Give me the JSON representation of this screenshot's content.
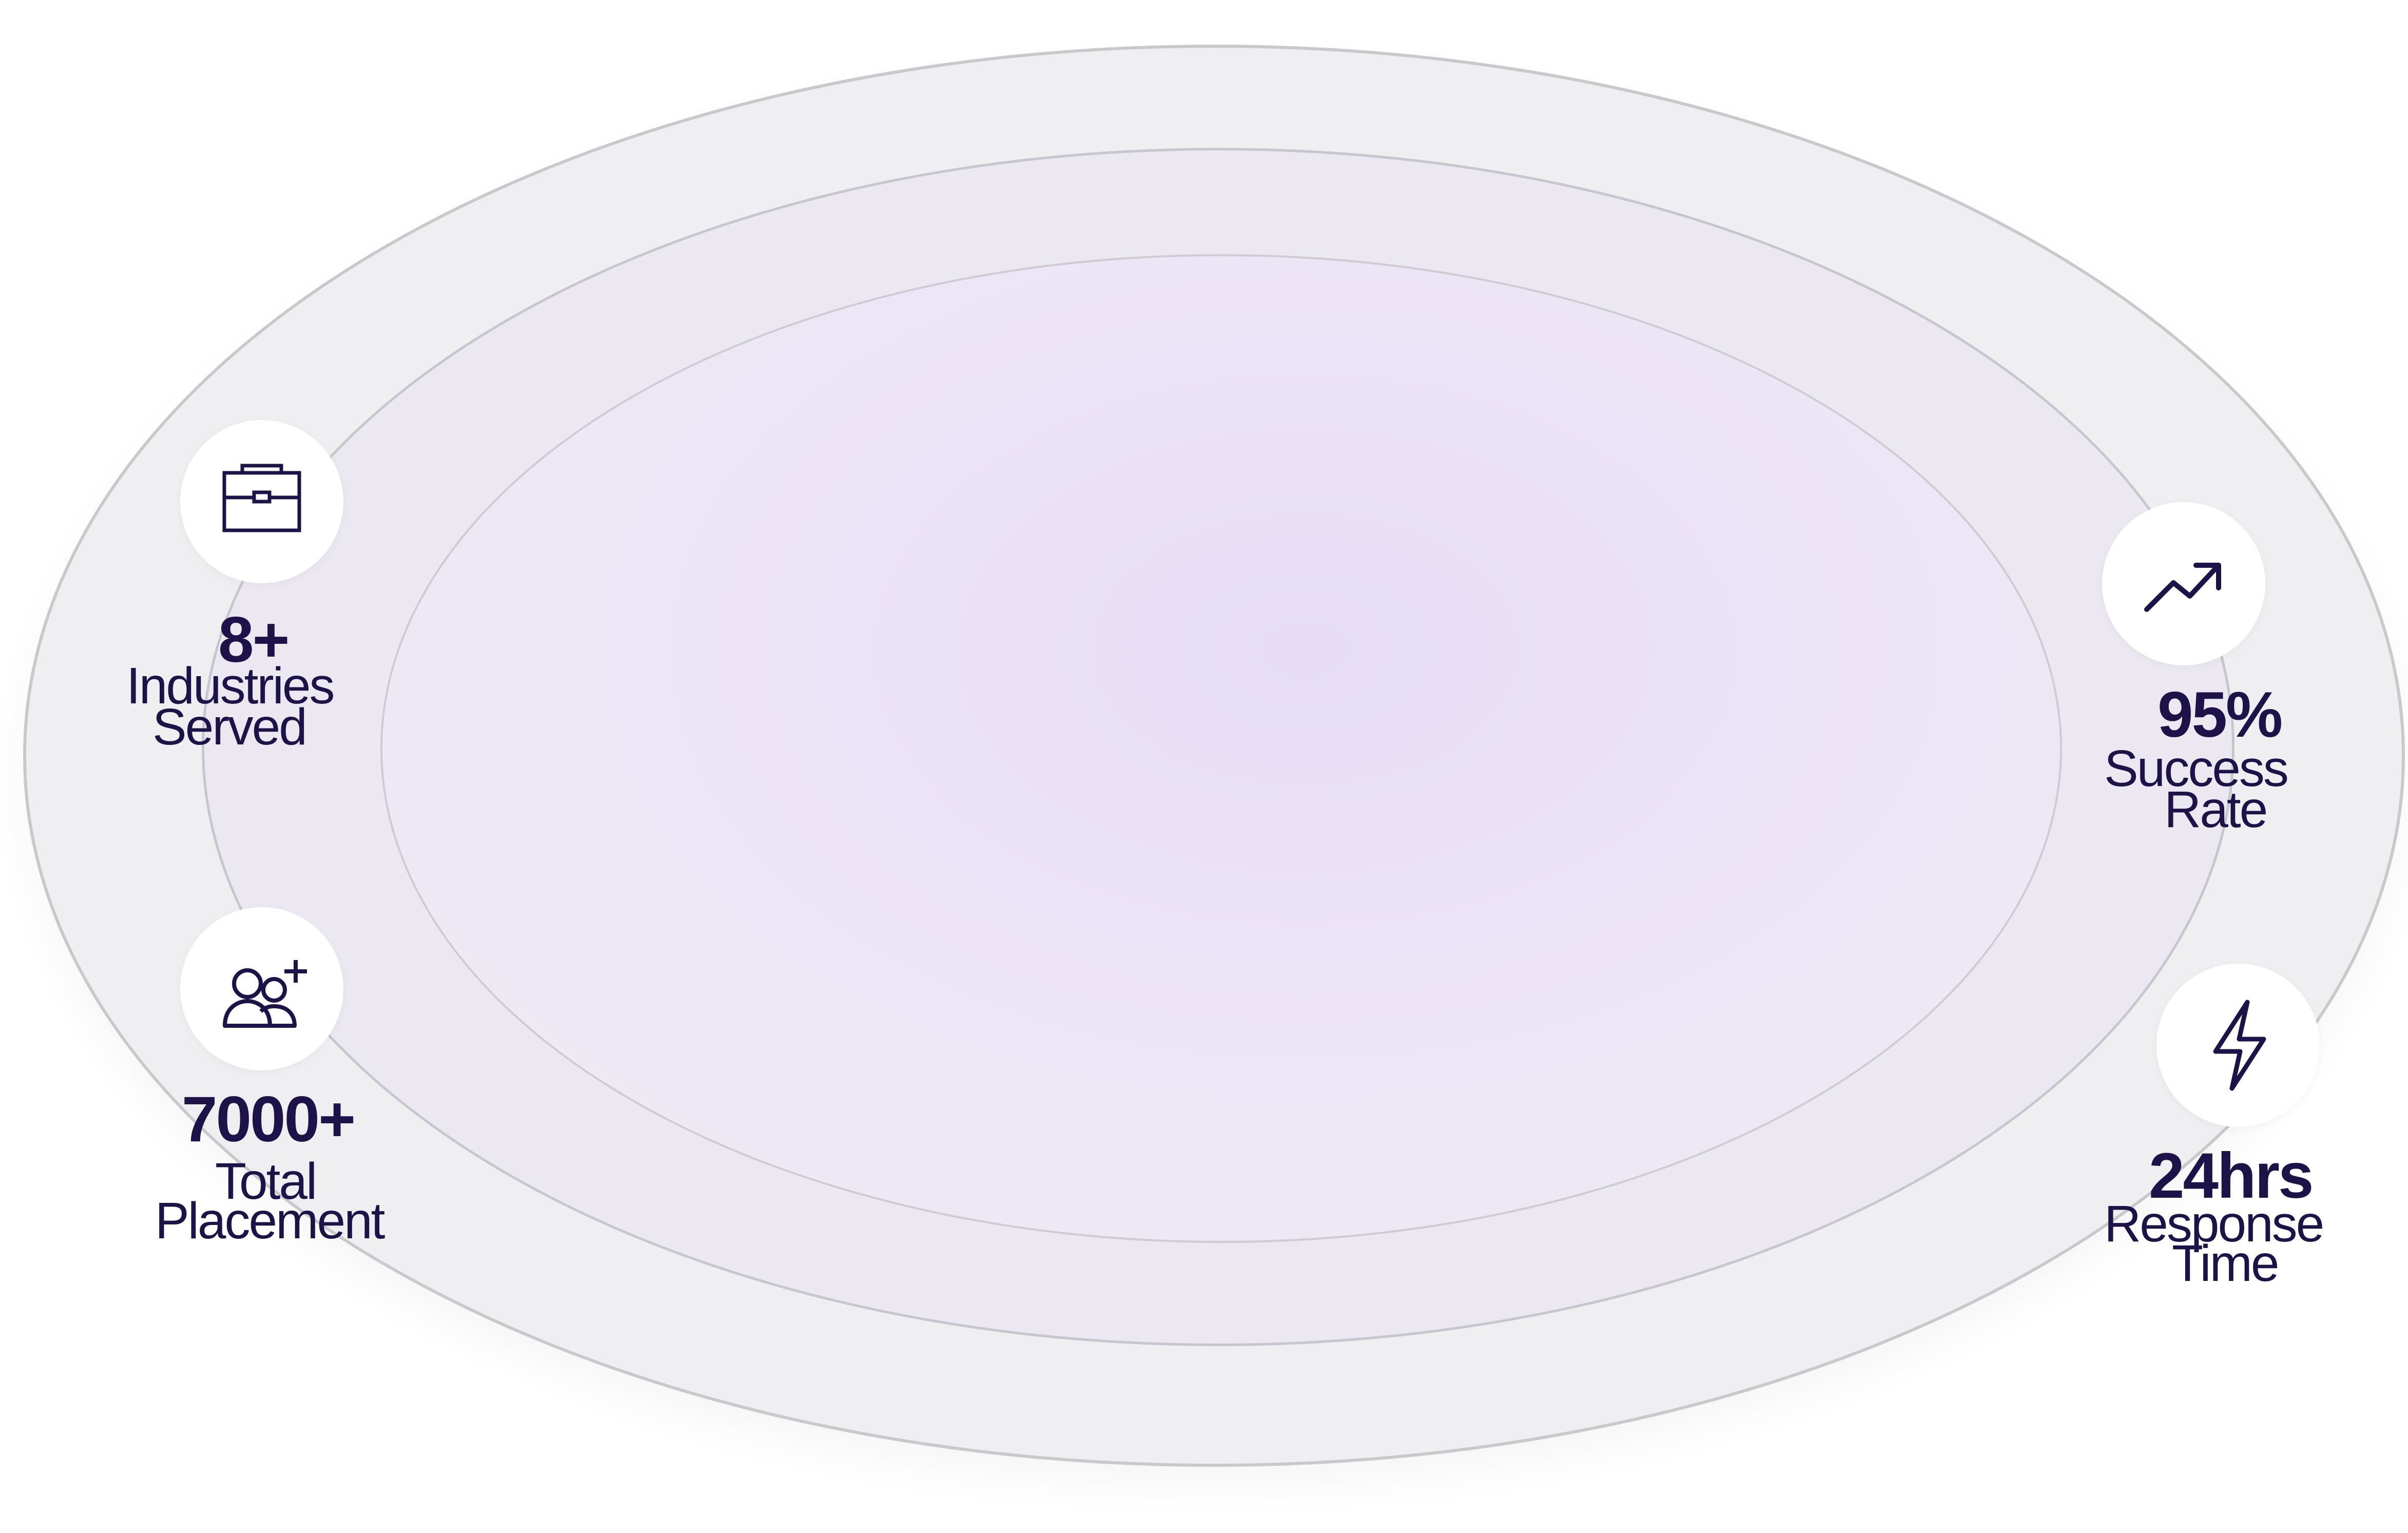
{
  "stats": {
    "industries": {
      "value": "8+",
      "label_line1": "Industries",
      "label_line2": "Served",
      "icon": "briefcase-icon"
    },
    "placement": {
      "value": "7000+",
      "label_line1": "Total",
      "label_line2": "Placement",
      "icon": "users-add-icon"
    },
    "success": {
      "value": "95%",
      "label_line1": "Success",
      "label_line2": "Rate",
      "icon": "trending-up-icon"
    },
    "response": {
      "value": "24hrs",
      "label_line1": "Response",
      "label_line2": "Time",
      "icon": "lightning-icon"
    }
  },
  "colors": {
    "text": "#1e1348",
    "outer_ring": "#efeef1",
    "inner_glow": "#e6dcf7"
  }
}
